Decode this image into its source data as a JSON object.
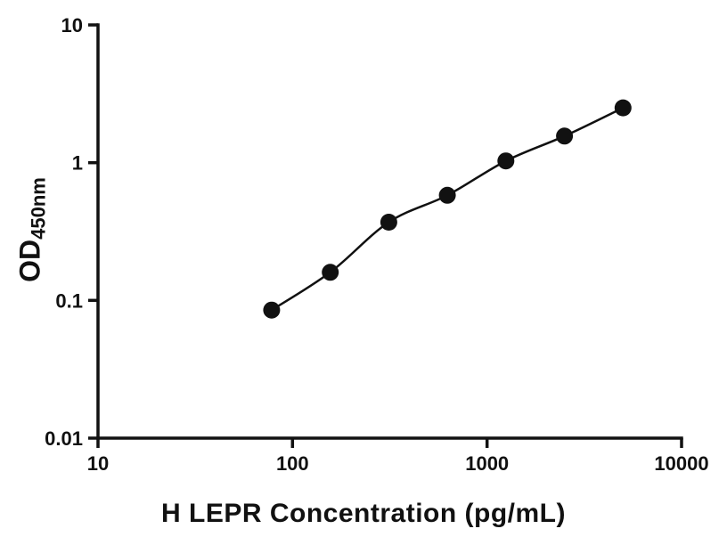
{
  "chart_data": {
    "type": "scatter",
    "title": "",
    "xlabel": "H LEPR Concentration (pg/mL)",
    "ylabel_main": "OD",
    "ylabel_sub": "450nm",
    "x": [
      78.125,
      156.25,
      312.5,
      625,
      1250,
      2500,
      5000
    ],
    "y": [
      0.085,
      0.16,
      0.37,
      0.58,
      1.03,
      1.56,
      2.5
    ],
    "x_ticks": [
      10,
      100,
      1000,
      10000
    ],
    "x_tick_labels": [
      "10",
      "100",
      "1000",
      "10000"
    ],
    "y_ticks": [
      0.01,
      0.1,
      1,
      10
    ],
    "y_tick_labels": [
      "0.01",
      "0.1",
      "1",
      "10"
    ],
    "xlim": [
      10,
      10000
    ],
    "ylim": [
      0.01,
      10
    ],
    "x_scale": "log",
    "y_scale": "log",
    "grid": false,
    "legend": "none",
    "marker_color": "#111111",
    "line_color": "#111111",
    "background": "#ffffff"
  }
}
